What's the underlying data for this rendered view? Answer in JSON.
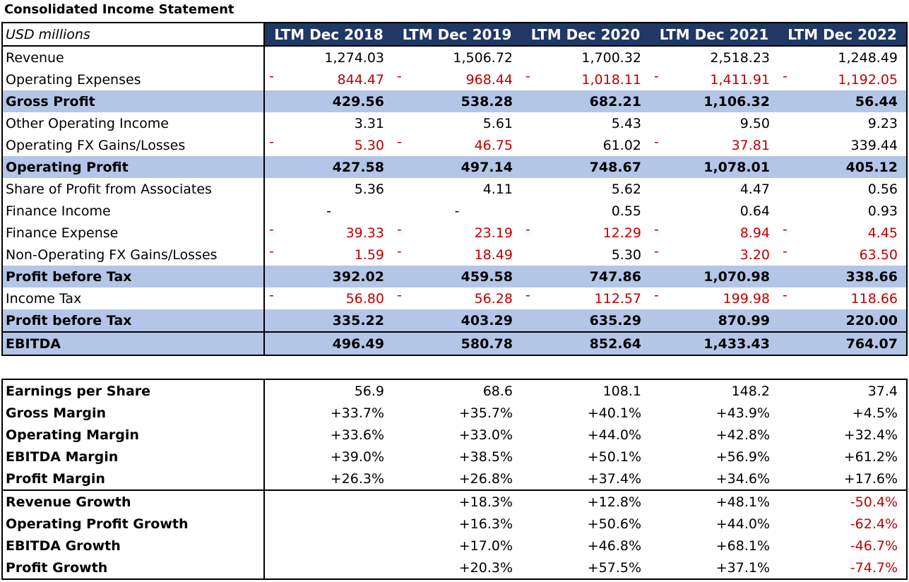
{
  "title": "Consolidated Income Statement",
  "unit_label": "USD millions",
  "years": [
    "LTM Dec 2018",
    "LTM Dec 2019",
    "LTM Dec 2020",
    "LTM Dec 2021",
    "LTM Dec 2022"
  ],
  "colors": {
    "header_bg": "#1f3864",
    "band_bg": "#b4c6e7",
    "negative": "#c00000"
  },
  "statement_rows": [
    {
      "label": "Revenue",
      "style": "plain",
      "cells": [
        {
          "v": "1,274.03"
        },
        {
          "v": "1,506.72"
        },
        {
          "v": "1,700.32"
        },
        {
          "v": "2,518.23"
        },
        {
          "v": "1,248.49"
        }
      ]
    },
    {
      "label": "Operating Expenses",
      "style": "plain",
      "cells": [
        {
          "v": "844.47",
          "neg": true
        },
        {
          "v": "968.44",
          "neg": true
        },
        {
          "v": "1,018.11",
          "neg": true
        },
        {
          "v": "1,411.91",
          "neg": true
        },
        {
          "v": "1,192.05",
          "neg": true
        }
      ]
    },
    {
      "label": "Gross Profit",
      "style": "band",
      "cells": [
        {
          "v": "429.56"
        },
        {
          "v": "538.28"
        },
        {
          "v": "682.21"
        },
        {
          "v": "1,106.32"
        },
        {
          "v": "56.44"
        }
      ]
    },
    {
      "label": "Other Operating Income",
      "style": "plain",
      "cells": [
        {
          "v": "3.31"
        },
        {
          "v": "5.61"
        },
        {
          "v": "5.43"
        },
        {
          "v": "9.50"
        },
        {
          "v": "9.23"
        }
      ]
    },
    {
      "label": "Operating FX Gains/Losses",
      "style": "plain",
      "cells": [
        {
          "v": "5.30",
          "neg": true
        },
        {
          "v": "46.75",
          "neg": true
        },
        {
          "v": "61.02"
        },
        {
          "v": "37.81",
          "neg": true
        },
        {
          "v": "339.44"
        }
      ]
    },
    {
      "label": "Operating Profit",
      "style": "band",
      "cells": [
        {
          "v": "427.58"
        },
        {
          "v": "497.14"
        },
        {
          "v": "748.67"
        },
        {
          "v": "1,078.01"
        },
        {
          "v": "405.12"
        }
      ]
    },
    {
      "label": "Share of Profit from Associates",
      "style": "plain",
      "cells": [
        {
          "v": "5.36"
        },
        {
          "v": "4.11"
        },
        {
          "v": "5.62"
        },
        {
          "v": "4.47"
        },
        {
          "v": "0.56"
        }
      ]
    },
    {
      "label": "Finance Income",
      "style": "plain",
      "cells": [
        {
          "v": "-",
          "center": true
        },
        {
          "v": "-",
          "center": true
        },
        {
          "v": "0.55"
        },
        {
          "v": "0.64"
        },
        {
          "v": "0.93"
        }
      ]
    },
    {
      "label": "Finance Expense",
      "style": "plain",
      "cells": [
        {
          "v": "39.33",
          "neg": true
        },
        {
          "v": "23.19",
          "neg": true
        },
        {
          "v": "12.29",
          "neg": true
        },
        {
          "v": "8.94",
          "neg": true
        },
        {
          "v": "4.45",
          "neg": true
        }
      ]
    },
    {
      "label": "Non-Operating FX Gains/Losses",
      "style": "plain",
      "cells": [
        {
          "v": "1.59",
          "neg": true
        },
        {
          "v": "18.49",
          "neg": true
        },
        {
          "v": "5.30"
        },
        {
          "v": "3.20",
          "neg": true
        },
        {
          "v": "63.50",
          "neg": true
        }
      ]
    },
    {
      "label": "Profit before Tax",
      "style": "band",
      "cells": [
        {
          "v": "392.02"
        },
        {
          "v": "459.58"
        },
        {
          "v": "747.86"
        },
        {
          "v": "1,070.98"
        },
        {
          "v": "338.66"
        }
      ]
    },
    {
      "label": "Income Tax",
      "style": "plain",
      "cells": [
        {
          "v": "56.80",
          "neg": true
        },
        {
          "v": "56.28",
          "neg": true
        },
        {
          "v": "112.57",
          "neg": true
        },
        {
          "v": "199.98",
          "neg": true
        },
        {
          "v": "118.66",
          "neg": true
        }
      ]
    },
    {
      "label": "Profit before Tax",
      "style": "band",
      "cells": [
        {
          "v": "335.22"
        },
        {
          "v": "403.29"
        },
        {
          "v": "635.29"
        },
        {
          "v": "870.99"
        },
        {
          "v": "220.00"
        }
      ]
    },
    {
      "label": "EBITDA",
      "style": "ebitda",
      "cells": [
        {
          "v": "496.49"
        },
        {
          "v": "580.78"
        },
        {
          "v": "852.64"
        },
        {
          "v": "1,433.43"
        },
        {
          "v": "764.07"
        }
      ]
    }
  ],
  "ratio_rows": [
    {
      "label": "Earnings per Share",
      "cells": [
        {
          "v": "56.9"
        },
        {
          "v": "68.6"
        },
        {
          "v": "108.1"
        },
        {
          "v": "148.2"
        },
        {
          "v": "37.4"
        }
      ]
    },
    {
      "label": "Gross Margin",
      "cells": [
        {
          "v": "+33.7%"
        },
        {
          "v": "+35.7%"
        },
        {
          "v": "+40.1%"
        },
        {
          "v": "+43.9%"
        },
        {
          "v": "+4.5%"
        }
      ]
    },
    {
      "label": "Operating Margin",
      "cells": [
        {
          "v": "+33.6%"
        },
        {
          "v": "+33.0%"
        },
        {
          "v": "+44.0%"
        },
        {
          "v": "+42.8%"
        },
        {
          "v": "+32.4%"
        }
      ]
    },
    {
      "label": "EBITDA Margin",
      "cells": [
        {
          "v": "+39.0%"
        },
        {
          "v": "+38.5%"
        },
        {
          "v": "+50.1%"
        },
        {
          "v": "+56.9%"
        },
        {
          "v": "+61.2%"
        }
      ]
    },
    {
      "label": "Profit Margin",
      "cells": [
        {
          "v": "+26.3%"
        },
        {
          "v": "+26.8%"
        },
        {
          "v": "+37.4%"
        },
        {
          "v": "+34.6%"
        },
        {
          "v": "+17.6%"
        }
      ]
    },
    {
      "label": "Revenue Growth",
      "sep": true,
      "cells": [
        {
          "v": ""
        },
        {
          "v": "+18.3%"
        },
        {
          "v": "+12.8%"
        },
        {
          "v": "+48.1%"
        },
        {
          "v": "-50.4%",
          "red": true
        }
      ]
    },
    {
      "label": "Operating Profit Growth",
      "cells": [
        {
          "v": ""
        },
        {
          "v": "+16.3%"
        },
        {
          "v": "+50.6%"
        },
        {
          "v": "+44.0%"
        },
        {
          "v": "-62.4%",
          "red": true
        }
      ]
    },
    {
      "label": "EBITDA Growth",
      "cells": [
        {
          "v": ""
        },
        {
          "v": "+17.0%"
        },
        {
          "v": "+46.8%"
        },
        {
          "v": "+68.1%"
        },
        {
          "v": "-46.7%",
          "red": true
        }
      ]
    },
    {
      "label": "Profit Growth",
      "cells": [
        {
          "v": ""
        },
        {
          "v": "+20.3%"
        },
        {
          "v": "+57.5%"
        },
        {
          "v": "+37.1%"
        },
        {
          "v": "-74.7%",
          "red": true
        }
      ]
    }
  ]
}
